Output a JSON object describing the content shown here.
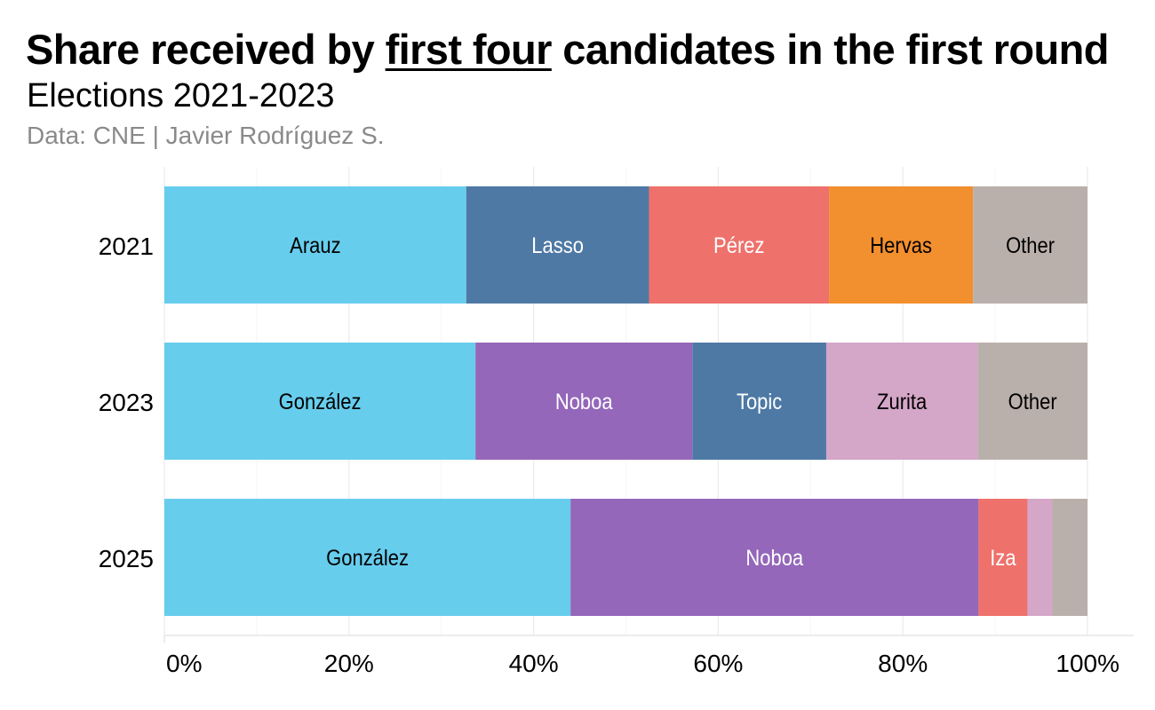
{
  "header": {
    "title_before": "Share received by ",
    "title_emphasis": "first four",
    "title_after": " candidates in the first round",
    "subtitle": "Elections 2021-2023",
    "caption": "Data: CNE | Javier Rodríguez S."
  },
  "colors": {
    "light-blue": "#67CDED",
    "steel-blue": "#4E79A5",
    "salmon": "#EF716B",
    "orange": "#F28F2E",
    "purple": "#9467BA",
    "pink": "#D4A6C8",
    "grey": "#BAB0AB",
    "grid": "#ebebeb"
  },
  "chart_data": {
    "type": "bar",
    "orientation": "horizontal",
    "stacked": true,
    "xlim": [
      0,
      100
    ],
    "x_ticks": [
      "0%",
      "20%",
      "40%",
      "60%",
      "80%",
      "100%"
    ],
    "grid": true,
    "title": "Share received by first four candidates in the first round",
    "subtitle": "Elections 2021-2023",
    "caption": "Data: CNE | Javier Rodríguez S.",
    "categories": [
      "2021",
      "2023",
      "2025"
    ],
    "rows": [
      {
        "year": "2021",
        "segments": [
          {
            "label": "Arauz",
            "value": 32.7,
            "color": "#67CDED",
            "text_color": "#000000"
          },
          {
            "label": "Lasso",
            "value": 19.8,
            "color": "#4E79A5",
            "text_color": "#ffffff"
          },
          {
            "label": "Pérez",
            "value": 19.5,
            "color": "#EF716B",
            "text_color": "#ffffff"
          },
          {
            "label": "Hervas",
            "value": 15.6,
            "color": "#F28F2E",
            "text_color": "#000000"
          },
          {
            "label": "Other",
            "value": 12.4,
            "color": "#BAB0AB",
            "text_color": "#000000"
          }
        ]
      },
      {
        "year": "2023",
        "segments": [
          {
            "label": "González",
            "value": 33.7,
            "color": "#67CDED",
            "text_color": "#000000"
          },
          {
            "label": "Noboa",
            "value": 23.5,
            "color": "#9467BA",
            "text_color": "#ffffff"
          },
          {
            "label": "Topic",
            "value": 14.5,
            "color": "#4E79A5",
            "text_color": "#ffffff"
          },
          {
            "label": "Zurita",
            "value": 16.4,
            "color": "#D4A6C8",
            "text_color": "#000000"
          },
          {
            "label": "Other",
            "value": 11.9,
            "color": "#BAB0AB",
            "text_color": "#000000"
          }
        ]
      },
      {
        "year": "2025",
        "segments": [
          {
            "label": "González",
            "value": 44.0,
            "color": "#67CDED",
            "text_color": "#000000"
          },
          {
            "label": "Noboa",
            "value": 44.2,
            "color": "#9467BA",
            "text_color": "#ffffff"
          },
          {
            "label": "Iza",
            "value": 5.3,
            "color": "#EF716B",
            "text_color": "#ffffff"
          },
          {
            "label": "",
            "value": 2.7,
            "color": "#D4A6C8",
            "text_color": "#000000"
          },
          {
            "label": "",
            "value": 3.8,
            "color": "#BAB0AB",
            "text_color": "#000000"
          }
        ]
      }
    ]
  }
}
